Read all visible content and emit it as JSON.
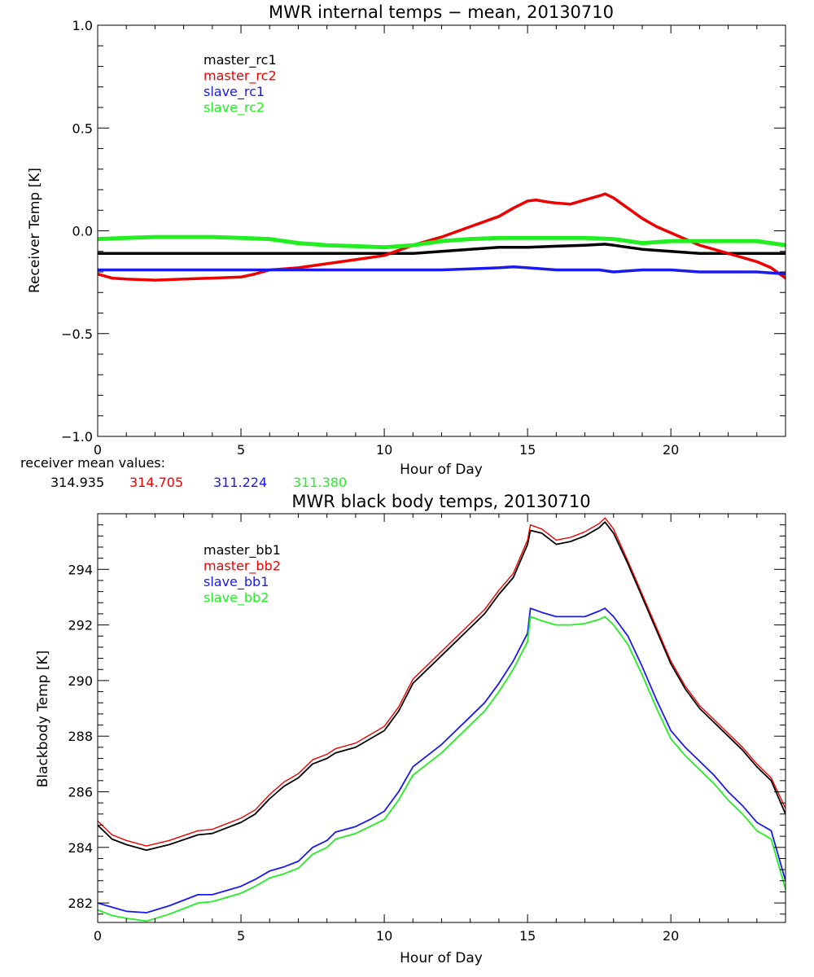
{
  "colors": {
    "black": "#000000",
    "red": "#ee0000",
    "blue": "#1a1aee",
    "green": "#22ee22"
  },
  "chart_data": [
    {
      "type": "line",
      "title": "MWR internal temps − mean, 20130710",
      "xlabel": "Hour of Day",
      "ylabel": "Receiver Temp [K]",
      "xlim": [
        0,
        24
      ],
      "ylim": [
        -1.0,
        1.0
      ],
      "xticks": [
        0,
        5,
        10,
        15,
        20
      ],
      "yticks": [
        -1.0,
        -0.5,
        0.0,
        0.5,
        1.0
      ],
      "yticks_labels": [
        "−1.0",
        "−0.5",
        "0.0",
        "0.5",
        "1.0"
      ],
      "grid": false,
      "legend_position": "top-left",
      "series": [
        {
          "name": "master_rc1",
          "color": "#000000",
          "stroke": 3.5,
          "x": [
            0,
            1,
            2,
            3,
            4,
            5,
            6,
            7,
            8,
            9,
            10,
            11,
            12,
            13,
            14,
            15,
            16,
            17,
            17.7,
            18,
            19,
            20,
            21,
            22,
            23,
            24
          ],
          "y": [
            -0.11,
            -0.11,
            -0.11,
            -0.11,
            -0.11,
            -0.11,
            -0.11,
            -0.11,
            -0.11,
            -0.11,
            -0.11,
            -0.11,
            -0.1,
            -0.09,
            -0.08,
            -0.08,
            -0.075,
            -0.07,
            -0.065,
            -0.07,
            -0.09,
            -0.1,
            -0.11,
            -0.11,
            -0.11,
            -0.11
          ]
        },
        {
          "name": "master_rc2",
          "color": "#ee0000",
          "stroke": 3.5,
          "x": [
            0,
            0.5,
            1,
            2,
            3,
            4,
            5,
            5.5,
            6,
            6.5,
            7,
            7.5,
            8,
            9,
            10,
            11,
            12,
            13,
            14,
            14.5,
            15,
            15.3,
            15.7,
            16,
            16.5,
            17,
            17.5,
            17.7,
            18,
            18.5,
            19,
            19.5,
            20,
            20.5,
            21,
            21.5,
            22,
            22.5,
            23,
            23.5,
            24
          ],
          "y": [
            -0.21,
            -0.23,
            -0.235,
            -0.24,
            -0.235,
            -0.23,
            -0.225,
            -0.21,
            -0.19,
            -0.185,
            -0.18,
            -0.17,
            -0.16,
            -0.14,
            -0.12,
            -0.07,
            -0.03,
            0.02,
            0.07,
            0.11,
            0.145,
            0.15,
            0.14,
            0.135,
            0.13,
            0.15,
            0.17,
            0.18,
            0.16,
            0.11,
            0.06,
            0.02,
            -0.01,
            -0.04,
            -0.07,
            -0.09,
            -0.11,
            -0.13,
            -0.15,
            -0.18,
            -0.23
          ]
        },
        {
          "name": "slave_rc1",
          "color": "#1a1aee",
          "stroke": 3.5,
          "x": [
            0,
            1,
            2,
            3,
            4,
            5,
            6,
            7,
            8,
            9,
            10,
            11,
            12,
            13,
            14,
            14.5,
            15,
            16,
            17,
            17.5,
            18,
            19,
            20,
            21,
            22,
            23,
            24
          ],
          "y": [
            -0.19,
            -0.19,
            -0.19,
            -0.19,
            -0.19,
            -0.19,
            -0.19,
            -0.19,
            -0.19,
            -0.19,
            -0.19,
            -0.19,
            -0.19,
            -0.185,
            -0.18,
            -0.175,
            -0.18,
            -0.19,
            -0.19,
            -0.19,
            -0.2,
            -0.19,
            -0.19,
            -0.2,
            -0.2,
            -0.2,
            -0.21
          ]
        },
        {
          "name": "slave_rc2",
          "color": "#22ee22",
          "stroke": 5,
          "x": [
            0,
            1,
            2,
            3,
            4,
            5,
            6,
            7,
            8,
            9,
            10,
            11,
            12,
            13,
            14,
            15,
            16,
            17,
            18,
            19,
            20,
            21,
            22,
            23,
            24
          ],
          "y": [
            -0.04,
            -0.035,
            -0.03,
            -0.03,
            -0.03,
            -0.035,
            -0.04,
            -0.06,
            -0.07,
            -0.075,
            -0.08,
            -0.07,
            -0.05,
            -0.04,
            -0.035,
            -0.035,
            -0.035,
            -0.035,
            -0.04,
            -0.06,
            -0.05,
            -0.05,
            -0.05,
            -0.05,
            -0.07
          ]
        }
      ],
      "mean_values": {
        "label": "receiver mean values:",
        "values": [
          {
            "text": "314.935",
            "color": "#000000"
          },
          {
            "text": "314.705",
            "color": "#ee0000"
          },
          {
            "text": "311.224",
            "color": "#1a1aee"
          },
          {
            "text": "311.380",
            "color": "#22ee22"
          }
        ]
      }
    },
    {
      "type": "line",
      "title": "MWR black body temps, 20130710",
      "xlabel": "Hour of Day",
      "ylabel": "Blackbody Temp [K]",
      "xlim": [
        0,
        24
      ],
      "ylim": [
        281.3,
        296.0
      ],
      "xticks": [
        0,
        5,
        10,
        15,
        20
      ],
      "yticks": [
        282,
        284,
        286,
        288,
        290,
        292,
        294
      ],
      "grid": false,
      "legend_position": "top-left",
      "series": [
        {
          "name": "master_bb1",
          "color": "#000000",
          "stroke": 1.8,
          "x": [
            0,
            0.5,
            1,
            1.7,
            2.5,
            3.5,
            4,
            5,
            5.5,
            6,
            6.5,
            7,
            7.5,
            8,
            8.3,
            9,
            9.5,
            10,
            10.5,
            11,
            12,
            13,
            13.5,
            14,
            14.5,
            15,
            15.1,
            15.5,
            16,
            16.5,
            17,
            17.5,
            17.7,
            18,
            18.5,
            19,
            19.5,
            20,
            20.5,
            21,
            21.5,
            22,
            22.5,
            23,
            23.5,
            24
          ],
          "y": [
            284.8,
            284.3,
            284.1,
            283.9,
            284.1,
            284.45,
            284.5,
            284.9,
            285.2,
            285.75,
            286.2,
            286.5,
            287.0,
            287.2,
            287.4,
            287.6,
            287.9,
            288.2,
            288.9,
            289.9,
            290.9,
            291.9,
            292.4,
            293.1,
            293.7,
            294.9,
            295.4,
            295.3,
            294.9,
            295.0,
            295.2,
            295.5,
            295.7,
            295.3,
            294.2,
            293.0,
            291.8,
            290.6,
            289.7,
            289.0,
            288.5,
            288.0,
            287.5,
            286.9,
            286.4,
            285.2
          ]
        },
        {
          "name": "master_bb2",
          "color": "#ee0000",
          "stroke": 1.4,
          "x": [
            0,
            0.5,
            1,
            1.7,
            2.5,
            3.5,
            4,
            5,
            5.5,
            6,
            6.5,
            7,
            7.5,
            8,
            8.3,
            9,
            9.5,
            10,
            10.5,
            11,
            12,
            13,
            13.5,
            14,
            14.5,
            15,
            15.1,
            15.5,
            16,
            16.5,
            17,
            17.5,
            17.7,
            18,
            18.5,
            19,
            19.5,
            20,
            20.5,
            21,
            21.5,
            22,
            22.5,
            23,
            23.5,
            24
          ],
          "y": [
            284.95,
            284.45,
            284.25,
            284.05,
            284.25,
            284.6,
            284.65,
            285.05,
            285.35,
            285.9,
            286.35,
            286.65,
            287.15,
            287.35,
            287.55,
            287.75,
            288.05,
            288.35,
            289.05,
            290.05,
            291.05,
            292.05,
            292.55,
            293.25,
            293.85,
            295.05,
            295.6,
            295.45,
            295.05,
            295.15,
            295.35,
            295.65,
            295.85,
            295.45,
            294.3,
            293.1,
            291.9,
            290.7,
            289.8,
            289.1,
            288.6,
            288.1,
            287.6,
            287.0,
            286.5,
            285.4
          ]
        },
        {
          "name": "slave_bb1",
          "color": "#1a1aee",
          "stroke": 1.8,
          "x": [
            0,
            0.5,
            1,
            1.7,
            2.5,
            3.5,
            4,
            5,
            5.5,
            6,
            6.5,
            7,
            7.5,
            8,
            8.3,
            9,
            9.5,
            10,
            10.5,
            11,
            12,
            13,
            13.5,
            14,
            14.5,
            15,
            15.1,
            15.5,
            16,
            16.5,
            17,
            17.5,
            17.7,
            18,
            18.5,
            19,
            19.5,
            20,
            20.5,
            21,
            21.5,
            22,
            22.5,
            23,
            23.5,
            24
          ],
          "y": [
            282.0,
            281.85,
            281.7,
            281.65,
            281.9,
            282.3,
            282.3,
            282.6,
            282.85,
            283.15,
            283.3,
            283.5,
            284.0,
            284.25,
            284.55,
            284.75,
            285.0,
            285.3,
            286.0,
            286.9,
            287.7,
            288.7,
            289.2,
            289.9,
            290.7,
            291.7,
            292.6,
            292.45,
            292.3,
            292.3,
            292.3,
            292.5,
            292.6,
            292.3,
            291.6,
            290.5,
            289.3,
            288.2,
            287.6,
            287.1,
            286.6,
            286.0,
            285.5,
            284.9,
            284.6,
            282.8
          ]
        },
        {
          "name": "slave_bb2",
          "color": "#22ee22",
          "stroke": 1.8,
          "x": [
            0,
            0.5,
            1,
            1.7,
            2.5,
            3.5,
            4,
            5,
            5.5,
            6,
            6.5,
            7,
            7.5,
            8,
            8.3,
            9,
            9.5,
            10,
            10.5,
            11,
            12,
            13,
            13.5,
            14,
            14.5,
            15,
            15.1,
            15.5,
            16,
            16.5,
            17,
            17.5,
            17.7,
            18,
            18.5,
            19,
            19.5,
            20,
            20.5,
            21,
            21.5,
            22,
            22.5,
            23,
            23.5,
            24
          ],
          "y": [
            281.75,
            281.55,
            281.45,
            281.35,
            281.6,
            282.0,
            282.05,
            282.35,
            282.6,
            282.9,
            283.05,
            283.25,
            283.75,
            284.0,
            284.3,
            284.5,
            284.75,
            285.0,
            285.7,
            286.6,
            287.4,
            288.4,
            288.9,
            289.6,
            290.4,
            291.4,
            292.3,
            292.15,
            292.0,
            292.0,
            292.05,
            292.2,
            292.3,
            292.0,
            291.3,
            290.2,
            289.0,
            287.9,
            287.3,
            286.8,
            286.3,
            285.7,
            285.2,
            284.6,
            284.3,
            282.5
          ]
        }
      ]
    }
  ]
}
